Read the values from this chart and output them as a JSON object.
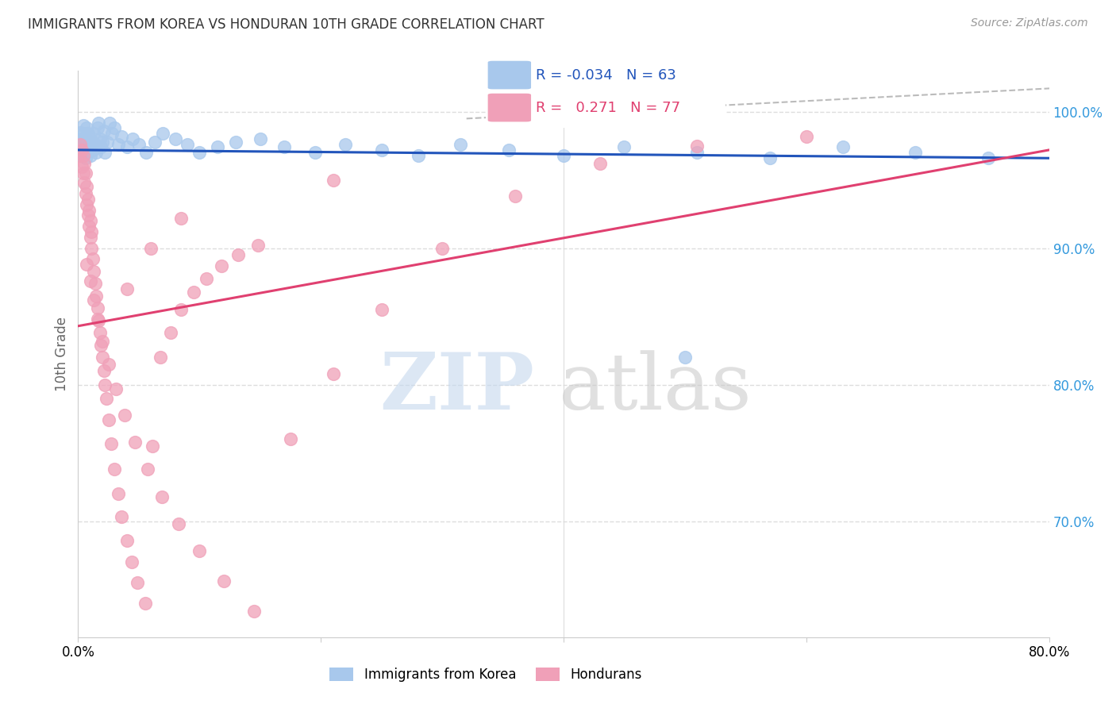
{
  "title": "IMMIGRANTS FROM KOREA VS HONDURAN 10TH GRADE CORRELATION CHART",
  "source": "Source: ZipAtlas.com",
  "ylabel": "10th Grade",
  "xlim": [
    0.0,
    0.8
  ],
  "ylim": [
    0.615,
    1.03
  ],
  "blue_color": "#A8C8EC",
  "pink_color": "#F0A0B8",
  "blue_line_color": "#2255BB",
  "pink_line_color": "#E04070",
  "legend_r_blue": "-0.034",
  "legend_n_blue": "63",
  "legend_r_pink": "0.271",
  "legend_n_pink": "77",
  "blue_scatter_x": [
    0.001,
    0.002,
    0.002,
    0.003,
    0.003,
    0.004,
    0.004,
    0.005,
    0.005,
    0.006,
    0.006,
    0.007,
    0.007,
    0.008,
    0.008,
    0.009,
    0.01,
    0.01,
    0.011,
    0.012,
    0.013,
    0.014,
    0.015,
    0.016,
    0.017,
    0.018,
    0.019,
    0.02,
    0.021,
    0.022,
    0.024,
    0.026,
    0.028,
    0.03,
    0.033,
    0.036,
    0.04,
    0.045,
    0.05,
    0.056,
    0.063,
    0.07,
    0.08,
    0.09,
    0.1,
    0.115,
    0.13,
    0.15,
    0.17,
    0.195,
    0.22,
    0.25,
    0.28,
    0.315,
    0.355,
    0.4,
    0.45,
    0.51,
    0.57,
    0.63,
    0.69,
    0.75,
    0.5
  ],
  "blue_scatter_y": [
    0.975,
    0.972,
    0.985,
    0.968,
    0.98,
    0.976,
    0.99,
    0.972,
    0.984,
    0.966,
    0.98,
    0.97,
    0.988,
    0.974,
    0.984,
    0.976,
    0.98,
    0.968,
    0.978,
    0.972,
    0.984,
    0.976,
    0.97,
    0.988,
    0.992,
    0.98,
    0.974,
    0.978,
    0.986,
    0.97,
    0.978,
    0.992,
    0.984,
    0.988,
    0.976,
    0.982,
    0.974,
    0.98,
    0.976,
    0.97,
    0.978,
    0.984,
    0.98,
    0.976,
    0.97,
    0.974,
    0.978,
    0.98,
    0.974,
    0.97,
    0.976,
    0.972,
    0.968,
    0.976,
    0.972,
    0.968,
    0.974,
    0.97,
    0.966,
    0.974,
    0.97,
    0.966,
    0.82
  ],
  "pink_scatter_x": [
    0.001,
    0.002,
    0.003,
    0.003,
    0.004,
    0.004,
    0.005,
    0.005,
    0.006,
    0.006,
    0.007,
    0.007,
    0.008,
    0.008,
    0.009,
    0.009,
    0.01,
    0.01,
    0.011,
    0.011,
    0.012,
    0.013,
    0.014,
    0.015,
    0.016,
    0.017,
    0.018,
    0.019,
    0.02,
    0.021,
    0.022,
    0.023,
    0.025,
    0.027,
    0.03,
    0.033,
    0.036,
    0.04,
    0.044,
    0.049,
    0.055,
    0.061,
    0.068,
    0.076,
    0.085,
    0.095,
    0.106,
    0.118,
    0.132,
    0.148,
    0.007,
    0.01,
    0.013,
    0.016,
    0.02,
    0.025,
    0.031,
    0.038,
    0.047,
    0.057,
    0.069,
    0.083,
    0.1,
    0.12,
    0.145,
    0.175,
    0.21,
    0.25,
    0.3,
    0.36,
    0.43,
    0.51,
    0.6,
    0.04,
    0.06,
    0.085,
    0.21
  ],
  "pink_scatter_y": [
    0.968,
    0.976,
    0.96,
    0.972,
    0.955,
    0.968,
    0.948,
    0.962,
    0.94,
    0.955,
    0.932,
    0.945,
    0.924,
    0.936,
    0.916,
    0.928,
    0.908,
    0.92,
    0.9,
    0.912,
    0.892,
    0.883,
    0.874,
    0.865,
    0.856,
    0.847,
    0.838,
    0.829,
    0.82,
    0.81,
    0.8,
    0.79,
    0.774,
    0.757,
    0.738,
    0.72,
    0.703,
    0.686,
    0.67,
    0.655,
    0.64,
    0.755,
    0.82,
    0.838,
    0.855,
    0.868,
    0.878,
    0.887,
    0.895,
    0.902,
    0.888,
    0.876,
    0.862,
    0.848,
    0.832,
    0.815,
    0.797,
    0.778,
    0.758,
    0.738,
    0.718,
    0.698,
    0.678,
    0.656,
    0.634,
    0.76,
    0.808,
    0.855,
    0.9,
    0.938,
    0.962,
    0.975,
    0.982,
    0.87,
    0.9,
    0.922,
    0.95
  ]
}
